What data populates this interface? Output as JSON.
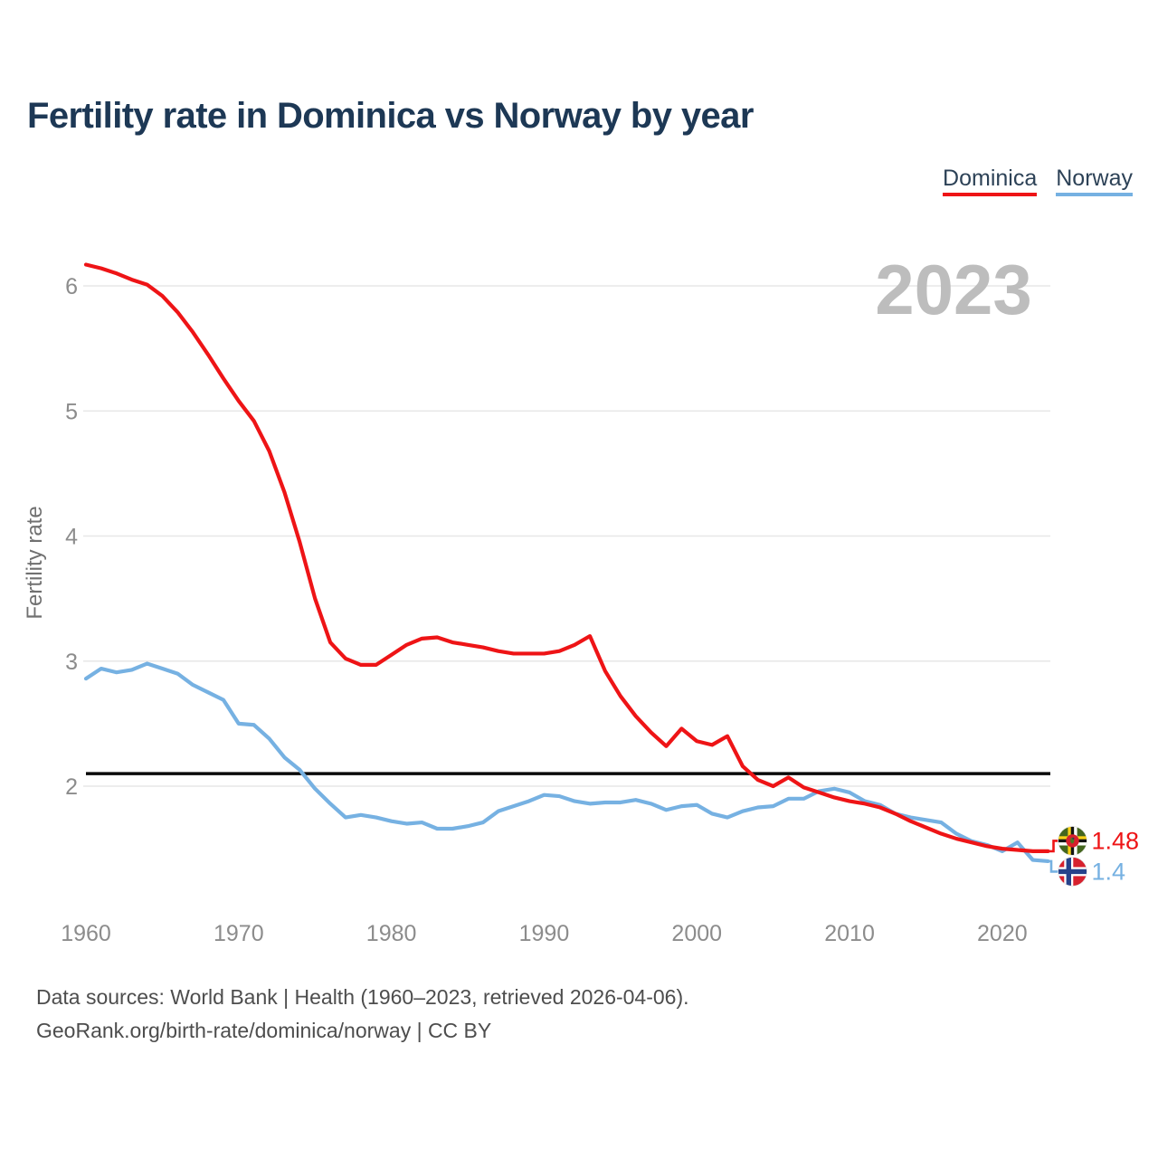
{
  "header": {
    "title": "Fertility rate in Dominica vs Norway by year"
  },
  "legend": [
    {
      "label": "Dominica",
      "color": "#ee1416"
    },
    {
      "label": "Norway",
      "color": "#76b1e2"
    }
  ],
  "watermark": "2023",
  "chart_data": {
    "type": "line",
    "title": "Fertility rate in Dominica vs Norway by year",
    "xlabel": "",
    "ylabel": "Fertility rate",
    "x_ticks": [
      1960,
      1970,
      1980,
      1990,
      2000,
      2010,
      2020
    ],
    "y_ticks": [
      2,
      3,
      4,
      5,
      6
    ],
    "xlim": [
      1960,
      2023
    ],
    "ylim": [
      1.3,
      6.35
    ],
    "grid": "horizontal",
    "legend_position": "top-right",
    "reference_line": {
      "value": 2.1,
      "color": "#0a0a0a"
    },
    "x": [
      1960,
      1961,
      1962,
      1963,
      1964,
      1965,
      1966,
      1967,
      1968,
      1969,
      1970,
      1971,
      1972,
      1973,
      1974,
      1975,
      1976,
      1977,
      1978,
      1979,
      1980,
      1981,
      1982,
      1983,
      1984,
      1985,
      1986,
      1987,
      1988,
      1989,
      1990,
      1991,
      1992,
      1993,
      1994,
      1995,
      1996,
      1997,
      1998,
      1999,
      2000,
      2001,
      2002,
      2003,
      2004,
      2005,
      2006,
      2007,
      2008,
      2009,
      2010,
      2011,
      2012,
      2013,
      2014,
      2015,
      2016,
      2017,
      2018,
      2019,
      2020,
      2021,
      2022,
      2023
    ],
    "series": [
      {
        "name": "Dominica",
        "color": "#ee1416",
        "end_label": "1.48",
        "values": [
          6.17,
          6.14,
          6.1,
          6.05,
          6.01,
          5.92,
          5.79,
          5.63,
          5.45,
          5.26,
          5.08,
          4.92,
          4.68,
          4.35,
          3.95,
          3.5,
          3.15,
          3.02,
          2.97,
          2.97,
          3.05,
          3.13,
          3.18,
          3.19,
          3.15,
          3.13,
          3.11,
          3.08,
          3.06,
          3.06,
          3.06,
          3.08,
          3.13,
          3.2,
          2.92,
          2.72,
          2.56,
          2.43,
          2.32,
          2.46,
          2.36,
          2.33,
          2.4,
          2.16,
          2.05,
          2.0,
          2.07,
          1.99,
          1.95,
          1.91,
          1.88,
          1.86,
          1.83,
          1.78,
          1.72,
          1.67,
          1.62,
          1.58,
          1.55,
          1.52,
          1.5,
          1.49,
          1.48,
          1.48
        ]
      },
      {
        "name": "Norway",
        "color": "#76b1e2",
        "end_label": "1.4",
        "values": [
          2.86,
          2.94,
          2.91,
          2.93,
          2.98,
          2.94,
          2.9,
          2.81,
          2.75,
          2.69,
          2.5,
          2.49,
          2.38,
          2.23,
          2.13,
          1.98,
          1.86,
          1.75,
          1.77,
          1.75,
          1.72,
          1.7,
          1.71,
          1.66,
          1.66,
          1.68,
          1.71,
          1.8,
          1.84,
          1.88,
          1.93,
          1.92,
          1.88,
          1.86,
          1.87,
          1.87,
          1.89,
          1.86,
          1.81,
          1.84,
          1.85,
          1.78,
          1.75,
          1.8,
          1.83,
          1.84,
          1.9,
          1.9,
          1.96,
          1.98,
          1.95,
          1.88,
          1.85,
          1.78,
          1.75,
          1.73,
          1.71,
          1.62,
          1.56,
          1.53,
          1.48,
          1.55,
          1.41,
          1.4
        ]
      }
    ]
  },
  "footer": {
    "line1": "Data sources: World Bank | Health (1960–2023, retrieved 2026-04-06).",
    "line2": "GeoRank.org/birth-rate/dominica/norway | CC BY"
  }
}
